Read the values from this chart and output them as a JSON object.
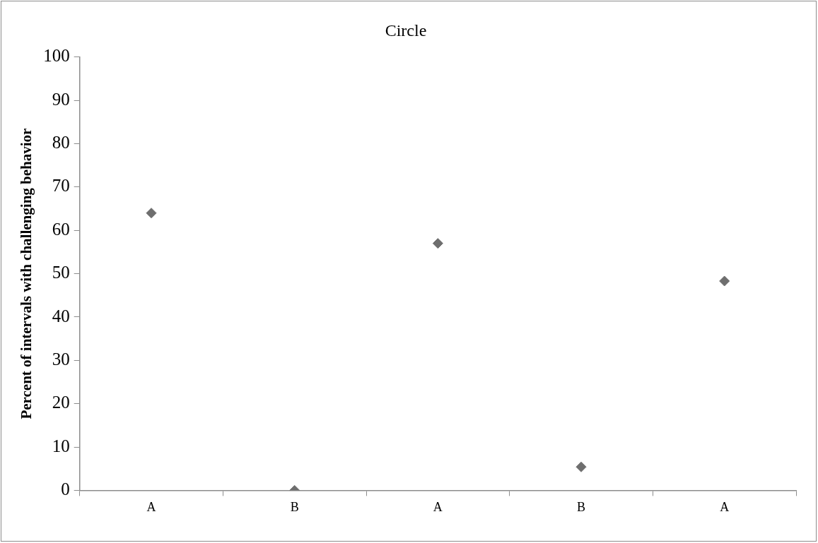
{
  "chart_data": {
    "type": "scatter",
    "title": "Circle",
    "ylabel": "Percent of intervals with challenging behavior",
    "categories": [
      "A",
      "B",
      "A",
      "B",
      "A"
    ],
    "series": [
      {
        "color": "#6e6e6e",
        "values": [
          64,
          0,
          57,
          5.4,
          48.3
        ]
      }
    ],
    "ylim": [
      0,
      100
    ],
    "yticks": [
      0,
      10,
      20,
      30,
      40,
      50,
      60,
      70,
      80,
      90,
      100
    ],
    "marker": "diamond",
    "grid": false,
    "legend": false
  }
}
